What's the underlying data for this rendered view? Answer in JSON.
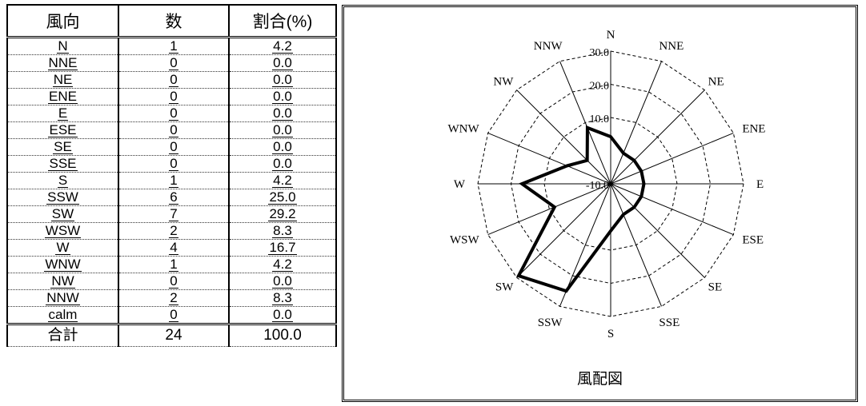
{
  "table": {
    "headers": [
      "風向",
      "数",
      "割合(%)"
    ],
    "rows": [
      {
        "dir": "N",
        "count": "1",
        "pct": "4.2"
      },
      {
        "dir": "NNE",
        "count": "0",
        "pct": "0.0"
      },
      {
        "dir": "NE",
        "count": "0",
        "pct": "0.0"
      },
      {
        "dir": "ENE",
        "count": "0",
        "pct": "0.0"
      },
      {
        "dir": "E",
        "count": "0",
        "pct": "0.0"
      },
      {
        "dir": "ESE",
        "count": "0",
        "pct": "0.0"
      },
      {
        "dir": "SE",
        "count": "0",
        "pct": "0.0"
      },
      {
        "dir": "SSE",
        "count": "0",
        "pct": "0.0"
      },
      {
        "dir": "S",
        "count": "1",
        "pct": "4.2"
      },
      {
        "dir": "SSW",
        "count": "6",
        "pct": "25.0"
      },
      {
        "dir": "SW",
        "count": "7",
        "pct": "29.2"
      },
      {
        "dir": "WSW",
        "count": "2",
        "pct": "8.3"
      },
      {
        "dir": "W",
        "count": "4",
        "pct": "16.7"
      },
      {
        "dir": "WNW",
        "count": "1",
        "pct": "4.2"
      },
      {
        "dir": "NW",
        "count": "0",
        "pct": "0.0"
      },
      {
        "dir": "NNW",
        "count": "2",
        "pct": "8.3"
      }
    ],
    "calm": {
      "dir": "calm",
      "count": "0",
      "pct": "0.0"
    },
    "total": {
      "dir": "合計",
      "count": "24",
      "pct": "100.0"
    }
  },
  "chart_data": {
    "type": "radar",
    "title": "風配図",
    "directions": [
      "N",
      "NNE",
      "NE",
      "ENE",
      "E",
      "ESE",
      "SE",
      "SSE",
      "S",
      "SSW",
      "SW",
      "WSW",
      "W",
      "WNW",
      "NW",
      "NNW"
    ],
    "values": [
      4.2,
      0.0,
      0.0,
      0.0,
      0.0,
      0.0,
      0.0,
      0.0,
      4.2,
      25.0,
      29.2,
      8.3,
      16.7,
      4.2,
      0.0,
      8.3
    ],
    "rlim": [
      -10,
      30
    ],
    "rticks": [
      "-10.0",
      "10.0",
      "20.0",
      "30.0"
    ],
    "grid": true
  }
}
